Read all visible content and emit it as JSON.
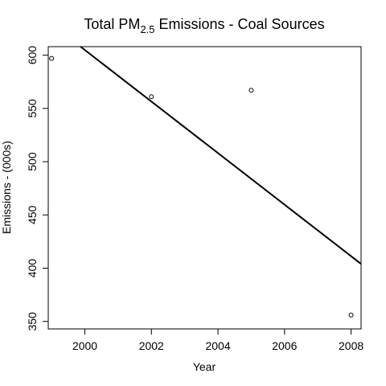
{
  "chart_data": {
    "type": "scatter",
    "title_main": "Total PM",
    "title_sub": "2.5",
    "title_rest": " Emissions - Coal Sources",
    "xlabel": "Year",
    "ylabel": "Emissions - (000s)",
    "xlim": [
      1998.9,
      2008.3
    ],
    "ylim": [
      343,
      608
    ],
    "x_ticks": [
      2000,
      2002,
      2004,
      2006,
      2008
    ],
    "y_ticks": [
      350,
      400,
      450,
      500,
      550,
      600
    ],
    "grid": false,
    "series": [
      {
        "points": [
          {
            "x": 1999,
            "y": 597
          },
          {
            "x": 2002,
            "y": 561
          },
          {
            "x": 2005,
            "y": 567
          },
          {
            "x": 2008,
            "y": 356
          }
        ]
      }
    ],
    "trend_line": {
      "x1": 1999.87,
      "y1": 608,
      "x2": 2008.3,
      "y2": 404
    },
    "colors": {
      "points": "#000000",
      "line": "#000000",
      "axes": "#000000"
    }
  }
}
